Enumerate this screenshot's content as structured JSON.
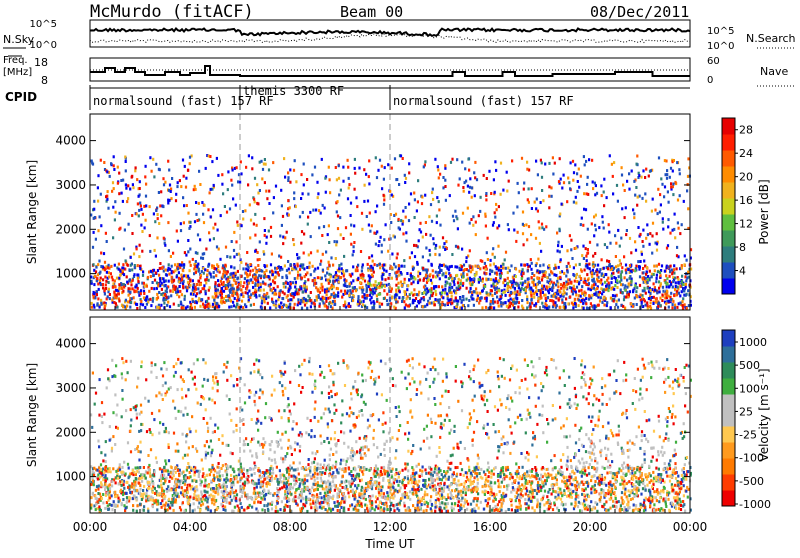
{
  "header": {
    "station": "McMurdo (fitACF)",
    "beam": "Beam 00",
    "date": "08/Dec/2011"
  },
  "top_panels": {
    "nsky_label": "N.Sky",
    "nsky_ticks": [
      "10^5",
      "10^0"
    ],
    "nsearch_ticks": [
      "10^5",
      "10^0"
    ],
    "nsearch_label": "N.Search",
    "freq_label_line1": "Freq.",
    "freq_label_line2": "[MHz]",
    "freq_ticks": [
      "18",
      "8"
    ],
    "nave_ticks": [
      "60",
      "0"
    ],
    "nave_label": "Nave",
    "cpid_label": "CPID",
    "cpid_segments": [
      {
        "label": "normalsound (fast) 157 RF",
        "start_hour": 0,
        "end_hour": 6
      },
      {
        "label": "themis 3300 RF",
        "start_hour": 6,
        "end_hour": 12
      },
      {
        "label": "normalsound (fast) 157 RF",
        "start_hour": 12,
        "end_hour": 24
      }
    ]
  },
  "colors": {
    "power_scale": [
      "#0000ee",
      "#1e4fbf",
      "#2e7d7d",
      "#3f9a5a",
      "#5fbf3f",
      "#c9d21e",
      "#f0b21e",
      "#ff8c00",
      "#ff5a00",
      "#ff1e00",
      "#e60000"
    ],
    "velocity_scale": [
      "#ee0000",
      "#ff3c00",
      "#ff7a00",
      "#ff9a1e",
      "#ffc850",
      "#c0c0c0",
      "#c0c0c0",
      "#3fae3f",
      "#2e8c5a",
      "#2e6f9a",
      "#1e3fbf"
    ]
  },
  "chart_data": [
    {
      "type": "heatmap",
      "panel": "power",
      "ylabel": "Slant Range [km]",
      "yticks": [
        "1000",
        "2000",
        "3000",
        "4000"
      ],
      "ylim": [
        180,
        4600
      ],
      "xlim": [
        0,
        24
      ],
      "colorbar_label": "Power [dB]",
      "colorbar_ticks": [
        "4",
        "8",
        "12",
        "16",
        "20",
        "24",
        "28"
      ],
      "colorbar_range": [
        0,
        30
      ],
      "features": [
        {
          "t0": 0.3,
          "t1": 4.5,
          "r0": 500,
          "r1": 900,
          "level": 26
        },
        {
          "t0": 5.0,
          "t1": 8.2,
          "r0": 500,
          "r1": 1100,
          "level": 24
        },
        {
          "t0": 8.2,
          "t1": 11.0,
          "r0": 500,
          "r1": 1000,
          "level": 22
        },
        {
          "t0": 11.0,
          "t1": 13.5,
          "r0": 550,
          "r1": 950,
          "level": 16
        },
        {
          "t0": 13.5,
          "t1": 17.5,
          "r0": 600,
          "r1": 1000,
          "level": 12
        },
        {
          "t0": 17.5,
          "t1": 20.5,
          "r0": 550,
          "r1": 950,
          "level": 22
        },
        {
          "t0": 20.5,
          "t1": 23.8,
          "r0": 600,
          "r1": 1100,
          "level": 8
        }
      ]
    },
    {
      "type": "heatmap",
      "panel": "velocity",
      "ylabel": "Slant Range [km]",
      "yticks": [
        "1000",
        "2000",
        "3000",
        "4000"
      ],
      "ylim": [
        180,
        4600
      ],
      "xlim": [
        0,
        24
      ],
      "xticks": [
        "00:00",
        "04:00",
        "08:00",
        "12:00",
        "16:00",
        "20:00",
        "00:00"
      ],
      "xlabel": "Time UT",
      "colorbar_label": "Velocity [m s⁻¹]",
      "colorbar_ticks": [
        "1000",
        "500",
        "100",
        "25",
        "-25",
        "-100",
        "-500",
        "-1000"
      ],
      "features": [
        {
          "t0": 0.3,
          "t1": 4.8,
          "r0": 500,
          "r1": 1200,
          "velocity": -150
        },
        {
          "t0": 5.0,
          "t1": 10.5,
          "r0": 500,
          "r1": 1100,
          "velocity": 120
        },
        {
          "t0": 6.0,
          "t1": 12.0,
          "r0": 1200,
          "r1": 1900,
          "velocity": 0
        },
        {
          "t0": 10.5,
          "t1": 14.5,
          "r0": 500,
          "r1": 1000,
          "velocity": -120
        },
        {
          "t0": 14.5,
          "t1": 23.5,
          "r0": 500,
          "r1": 1100,
          "velocity": -250
        },
        {
          "t0": 19.0,
          "t1": 23.0,
          "r0": 1200,
          "r1": 1900,
          "velocity": 0
        }
      ]
    }
  ]
}
